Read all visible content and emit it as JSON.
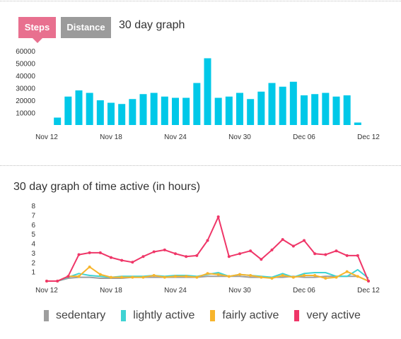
{
  "tabs": {
    "steps_label": "Steps",
    "distance_label": "Distance"
  },
  "chart_data": [
    {
      "type": "bar",
      "title": "30 day graph",
      "color": "#00c8e8",
      "ylim": [
        0,
        60000
      ],
      "y_ticks": [
        10000,
        20000,
        30000,
        40000,
        50000,
        60000
      ],
      "x_tick_labels": [
        "Nov 12",
        "Nov 18",
        "Nov 24",
        "Nov 30",
        "Dec 06",
        "Dec 12"
      ],
      "categories": [
        "Nov 12",
        "Nov 13",
        "Nov 14",
        "Nov 15",
        "Nov 16",
        "Nov 17",
        "Nov 18",
        "Nov 19",
        "Nov 20",
        "Nov 21",
        "Nov 22",
        "Nov 23",
        "Nov 24",
        "Nov 25",
        "Nov 26",
        "Nov 27",
        "Nov 28",
        "Nov 29",
        "Nov 30",
        "Dec 01",
        "Dec 02",
        "Dec 03",
        "Dec 04",
        "Dec 05",
        "Dec 06",
        "Dec 07",
        "Dec 08",
        "Dec 09",
        "Dec 10",
        "Dec 11",
        "Dec 12"
      ],
      "values": [
        0,
        6000,
        23000,
        28000,
        26000,
        20000,
        18000,
        17000,
        21000,
        25000,
        26000,
        23000,
        22000,
        22000,
        34000,
        54000,
        22000,
        23000,
        26000,
        21000,
        27000,
        34000,
        31000,
        35000,
        24000,
        25000,
        26000,
        23000,
        24000,
        2000,
        0
      ]
    },
    {
      "type": "line",
      "title": "30 day graph of time active (in hours)",
      "ylim": [
        0,
        8
      ],
      "y_ticks": [
        1,
        2,
        3,
        4,
        5,
        6,
        7,
        8
      ],
      "x_tick_labels": [
        "Nov 12",
        "Nov 18",
        "Nov 24",
        "Nov 30",
        "Dec 06",
        "Dec 12"
      ],
      "categories": [
        "Nov 12",
        "Nov 13",
        "Nov 14",
        "Nov 15",
        "Nov 16",
        "Nov 17",
        "Nov 18",
        "Nov 19",
        "Nov 20",
        "Nov 21",
        "Nov 22",
        "Nov 23",
        "Nov 24",
        "Nov 25",
        "Nov 26",
        "Nov 27",
        "Nov 28",
        "Nov 29",
        "Nov 30",
        "Dec 01",
        "Dec 02",
        "Dec 03",
        "Dec 04",
        "Dec 05",
        "Dec 06",
        "Dec 07",
        "Dec 08",
        "Dec 09",
        "Dec 10",
        "Dec 11",
        "Dec 12"
      ],
      "legend_position": "bottom",
      "series": [
        {
          "name": "sedentary",
          "color": "#9e9e9e",
          "markers": false,
          "values": [
            0,
            0,
            0.3,
            0.4,
            0.4,
            0.3,
            0.3,
            0.3,
            0.4,
            0.4,
            0.4,
            0.4,
            0.4,
            0.4,
            0.4,
            0.5,
            0.5,
            0.5,
            0.5,
            0.4,
            0.4,
            0.4,
            0.4,
            0.5,
            0.4,
            0.4,
            0.5,
            0.5,
            0.5,
            0.5,
            0
          ]
        },
        {
          "name": "lightly active",
          "color": "#3fd3d3",
          "markers": false,
          "values": [
            0,
            0,
            0.4,
            0.8,
            0.6,
            0.5,
            0.4,
            0.5,
            0.5,
            0.5,
            0.6,
            0.5,
            0.6,
            0.6,
            0.5,
            0.7,
            0.9,
            0.5,
            0.7,
            0.6,
            0.5,
            0.4,
            0.8,
            0.4,
            0.8,
            0.9,
            0.9,
            0.5,
            0.5,
            1.2,
            0.3
          ]
        },
        {
          "name": "fairly active",
          "color": "#f7b52c",
          "markers": true,
          "values": [
            0,
            0,
            0.5,
            0.5,
            1.5,
            0.7,
            0.4,
            0.4,
            0.4,
            0.4,
            0.6,
            0.4,
            0.5,
            0.5,
            0.4,
            0.8,
            0.7,
            0.5,
            0.7,
            0.6,
            0.4,
            0.3,
            0.6,
            0.4,
            0.6,
            0.6,
            0.3,
            0.4,
            1.0,
            0.5,
            0
          ]
        },
        {
          "name": "very active",
          "color": "#ef3668",
          "markers": true,
          "values": [
            0,
            0,
            0.5,
            2.8,
            3.0,
            3.0,
            2.5,
            2.2,
            2.0,
            2.6,
            3.1,
            3.3,
            2.9,
            2.6,
            2.7,
            4.3,
            6.8,
            2.6,
            2.9,
            3.2,
            2.3,
            3.3,
            4.4,
            3.7,
            4.3,
            2.9,
            2.8,
            3.2,
            2.7,
            2.7,
            0
          ]
        }
      ]
    }
  ]
}
